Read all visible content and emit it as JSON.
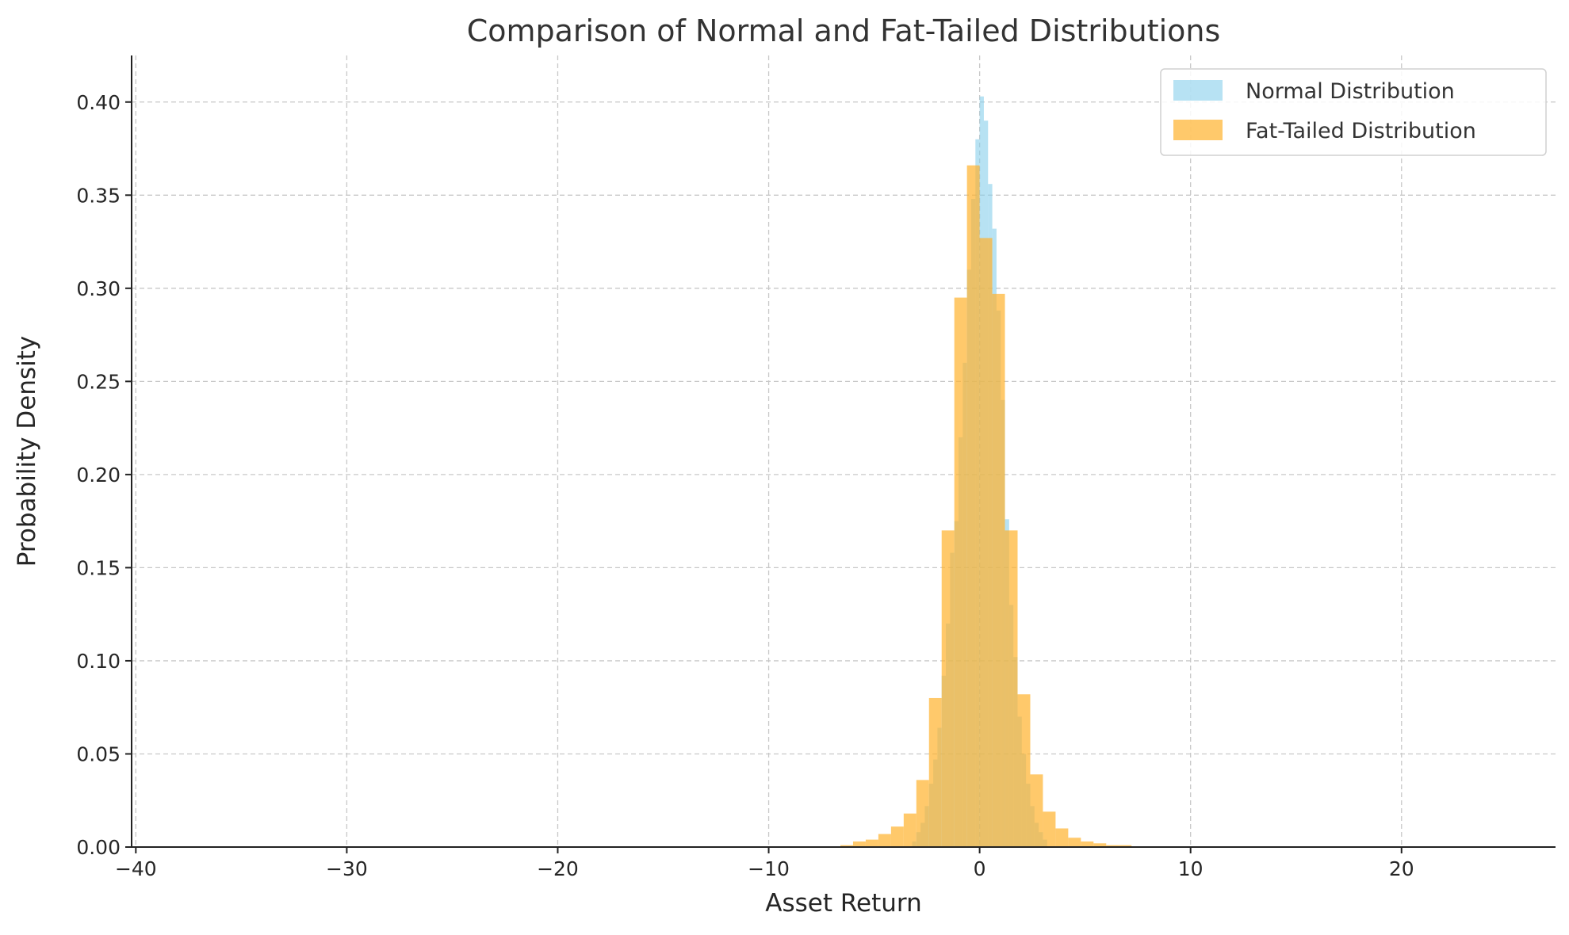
{
  "chart_data": {
    "type": "histogram",
    "title": "Comparison of Normal and Fat-Tailed Distributions",
    "xlabel": "Asset Return",
    "ylabel": "Probability Density",
    "xlim": [
      -40.2,
      27.3
    ],
    "ylim": [
      0,
      0.425
    ],
    "x_ticks": [
      -40,
      -30,
      -20,
      -10,
      0,
      10,
      20
    ],
    "x_tick_labels": [
      "−40",
      "−30",
      "−20",
      "−10",
      "0",
      "10",
      "20"
    ],
    "y_ticks": [
      0,
      0.05,
      0.1,
      0.15,
      0.2,
      0.25,
      0.3,
      0.35,
      0.4
    ],
    "y_tick_labels": [
      "0.00",
      "0.05",
      "0.10",
      "0.15",
      "0.20",
      "0.25",
      "0.30",
      "0.35",
      "0.40"
    ],
    "grid": true,
    "legend_position": "top-right",
    "series": [
      {
        "name": "Normal Distribution",
        "color": "#87ceeb",
        "opacity": 0.6,
        "bins": [
          {
            "x0": -3.2,
            "x1": -3.0,
            "density": 0.003
          },
          {
            "x0": -3.0,
            "x1": -2.8,
            "density": 0.008
          },
          {
            "x0": -2.8,
            "x1": -2.6,
            "density": 0.013
          },
          {
            "x0": -2.6,
            "x1": -2.4,
            "density": 0.022
          },
          {
            "x0": -2.4,
            "x1": -2.2,
            "density": 0.034
          },
          {
            "x0": -2.2,
            "x1": -2.0,
            "density": 0.047
          },
          {
            "x0": -2.0,
            "x1": -1.8,
            "density": 0.064
          },
          {
            "x0": -1.8,
            "x1": -1.6,
            "density": 0.092
          },
          {
            "x0": -1.6,
            "x1": -1.4,
            "density": 0.12
          },
          {
            "x0": -1.4,
            "x1": -1.2,
            "density": 0.158
          },
          {
            "x0": -1.2,
            "x1": -1.0,
            "density": 0.175
          },
          {
            "x0": -1.0,
            "x1": -0.8,
            "density": 0.22
          },
          {
            "x0": -0.8,
            "x1": -0.6,
            "density": 0.26
          },
          {
            "x0": -0.6,
            "x1": -0.4,
            "density": 0.31
          },
          {
            "x0": -0.4,
            "x1": -0.2,
            "density": 0.348
          },
          {
            "x0": -0.2,
            "x1": 0.0,
            "density": 0.38
          },
          {
            "x0": 0.0,
            "x1": 0.2,
            "density": 0.403
          },
          {
            "x0": 0.2,
            "x1": 0.4,
            "density": 0.39
          },
          {
            "x0": 0.4,
            "x1": 0.6,
            "density": 0.356
          },
          {
            "x0": 0.6,
            "x1": 0.8,
            "density": 0.332
          },
          {
            "x0": 0.8,
            "x1": 1.0,
            "density": 0.288
          },
          {
            "x0": 1.0,
            "x1": 1.2,
            "density": 0.24
          },
          {
            "x0": 1.2,
            "x1": 1.4,
            "density": 0.176
          },
          {
            "x0": 1.4,
            "x1": 1.6,
            "density": 0.13
          },
          {
            "x0": 1.6,
            "x1": 1.8,
            "density": 0.102
          },
          {
            "x0": 1.8,
            "x1": 2.0,
            "density": 0.07
          },
          {
            "x0": 2.0,
            "x1": 2.2,
            "density": 0.05
          },
          {
            "x0": 2.2,
            "x1": 2.4,
            "density": 0.034
          },
          {
            "x0": 2.4,
            "x1": 2.6,
            "density": 0.022
          },
          {
            "x0": 2.6,
            "x1": 2.8,
            "density": 0.013
          },
          {
            "x0": 2.8,
            "x1": 3.0,
            "density": 0.008
          },
          {
            "x0": 3.0,
            "x1": 3.2,
            "density": 0.004
          }
        ]
      },
      {
        "name": "Fat-Tailed Distribution",
        "color": "#ffb22c",
        "opacity": 0.7,
        "bins": [
          {
            "x0": -6.6,
            "x1": -6.0,
            "density": 0.001
          },
          {
            "x0": -6.0,
            "x1": -5.4,
            "density": 0.003
          },
          {
            "x0": -5.4,
            "x1": -4.8,
            "density": 0.004
          },
          {
            "x0": -4.8,
            "x1": -4.2,
            "density": 0.007
          },
          {
            "x0": -4.2,
            "x1": -3.6,
            "density": 0.011
          },
          {
            "x0": -3.6,
            "x1": -3.0,
            "density": 0.018
          },
          {
            "x0": -3.0,
            "x1": -2.4,
            "density": 0.036
          },
          {
            "x0": -2.4,
            "x1": -1.8,
            "density": 0.08
          },
          {
            "x0": -1.8,
            "x1": -1.2,
            "density": 0.17
          },
          {
            "x0": -1.2,
            "x1": -0.6,
            "density": 0.295
          },
          {
            "x0": -0.6,
            "x1": 0.0,
            "density": 0.366
          },
          {
            "x0": 0.0,
            "x1": 0.6,
            "density": 0.327
          },
          {
            "x0": 0.6,
            "x1": 1.2,
            "density": 0.297
          },
          {
            "x0": 1.2,
            "x1": 1.8,
            "density": 0.17
          },
          {
            "x0": 1.8,
            "x1": 2.4,
            "density": 0.082
          },
          {
            "x0": 2.4,
            "x1": 3.0,
            "density": 0.039
          },
          {
            "x0": 3.0,
            "x1": 3.6,
            "density": 0.019
          },
          {
            "x0": 3.6,
            "x1": 4.2,
            "density": 0.01
          },
          {
            "x0": 4.2,
            "x1": 4.8,
            "density": 0.005
          },
          {
            "x0": 4.8,
            "x1": 5.4,
            "density": 0.003
          },
          {
            "x0": 5.4,
            "x1": 6.0,
            "density": 0.002
          },
          {
            "x0": 6.0,
            "x1": 6.6,
            "density": 0.001
          },
          {
            "x0": 6.6,
            "x1": 7.2,
            "density": 0.001
          }
        ]
      }
    ]
  }
}
